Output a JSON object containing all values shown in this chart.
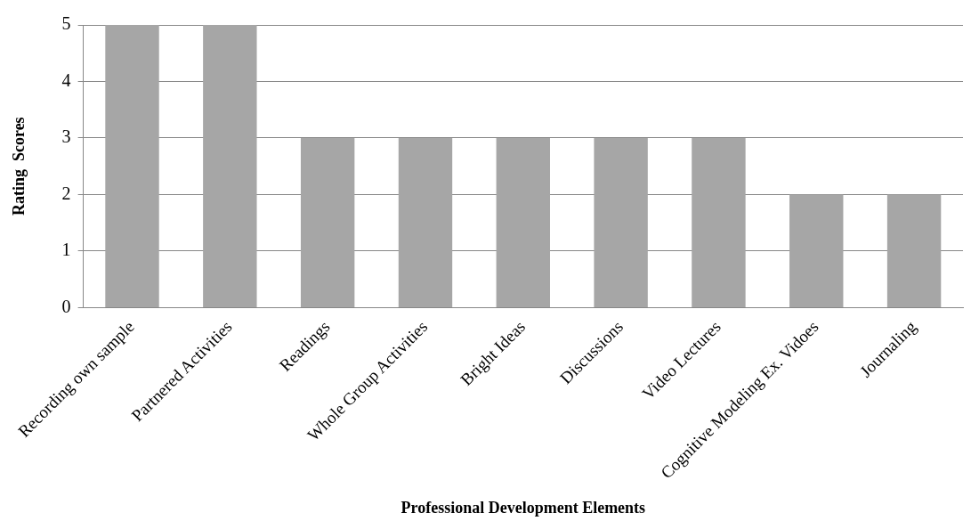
{
  "chart_data": {
    "type": "bar",
    "xlabel": "Professional Development Elements",
    "ylabel": "Rating  Scores",
    "categories": [
      "Recording own sample",
      "Partnered Activities",
      "Readings",
      "Whole Group Activities",
      "Bright Ideas",
      "Discussions",
      "Video Lectures",
      "Cognitive Modeling Ex. Vidoes",
      "Journaling"
    ],
    "values": [
      5,
      5,
      3,
      3,
      3,
      3,
      3,
      2,
      2
    ],
    "color": "#a6a6a6",
    "ylim": [
      0,
      5
    ],
    "yticks": [
      0,
      1,
      2,
      3,
      4,
      5
    ],
    "grid": "y",
    "legend": false
  }
}
